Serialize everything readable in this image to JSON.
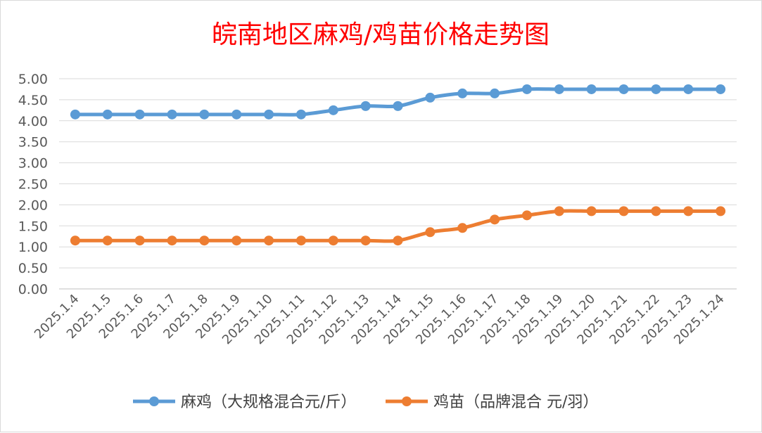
{
  "chart_data": {
    "type": "line",
    "title": "皖南地区麻鸡/鸡苗价格走势图",
    "title_color": "#ff0000",
    "categories": [
      "2025.1.4",
      "2025.1.5",
      "2025.1.6",
      "2025.1.7",
      "2025.1.8",
      "2025.1.9",
      "2025.1.10",
      "2025.1.11",
      "2025.1.12",
      "2025.1.13",
      "2025.1.14",
      "2025.1.15",
      "2025.1.16",
      "2025.1.17",
      "2025.1.18",
      "2025.1.19",
      "2025.1.20",
      "2025.1.21",
      "2025.1.22",
      "2025.1.23",
      "2025.1.24"
    ],
    "yticks": [
      "0.00",
      "0.50",
      "1.00",
      "1.50",
      "2.00",
      "2.50",
      "3.00",
      "3.50",
      "4.00",
      "4.50",
      "5.00"
    ],
    "ylim": [
      0,
      5
    ],
    "grid": true,
    "legend_position": "bottom",
    "series": [
      {
        "name": "麻鸡（大规格混合元/斤）",
        "color": "#5b9bd5",
        "values": [
          4.15,
          4.15,
          4.15,
          4.15,
          4.15,
          4.15,
          4.15,
          4.15,
          4.25,
          4.35,
          4.35,
          4.55,
          4.65,
          4.65,
          4.75,
          4.75,
          4.75,
          4.75,
          4.75,
          4.75,
          4.75
        ]
      },
      {
        "name": "鸡苗（品牌混合 元/羽）",
        "color": "#ed7d31",
        "values": [
          1.15,
          1.15,
          1.15,
          1.15,
          1.15,
          1.15,
          1.15,
          1.15,
          1.15,
          1.15,
          1.15,
          1.35,
          1.45,
          1.65,
          1.75,
          1.85,
          1.85,
          1.85,
          1.85,
          1.85,
          1.85
        ]
      }
    ]
  }
}
